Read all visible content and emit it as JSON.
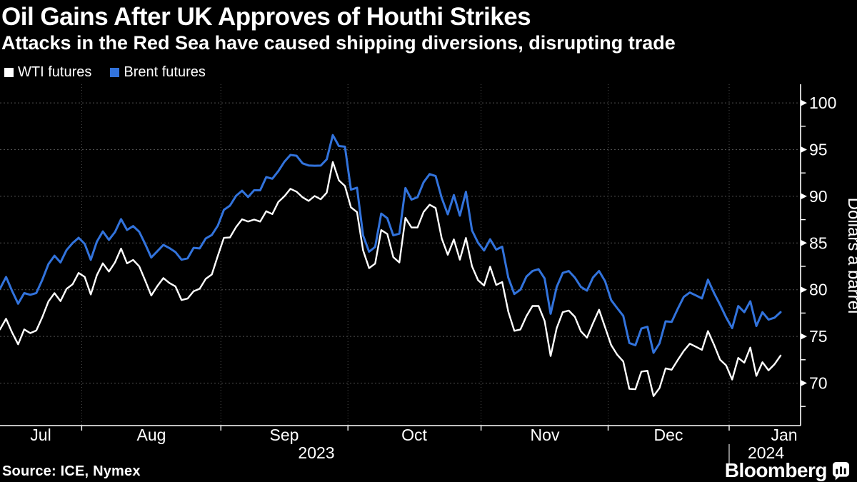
{
  "header": {
    "title": "Oil Gains After UK Approves of Houthi Strikes",
    "subtitle": "Attacks in the Red Sea have caused shipping diversions, disrupting trade"
  },
  "legend": [
    {
      "label": "WTI futures",
      "color": "#ffffff"
    },
    {
      "label": "Brent futures",
      "color": "#3273dc"
    }
  ],
  "source": "Source: ICE, Nymex",
  "branding": {
    "logo_text": "Bloomberg"
  },
  "chart_data": {
    "type": "line",
    "title": "Oil Gains After UK Approves of Houthi Strikes",
    "subtitle": "Attacks in the Red Sea have caused shipping diversions, disrupting trade",
    "xlabel": "",
    "ylabel": "Dollars a barrel",
    "x_unit": "daily trading sessions, Jul 12 2023 - Jan 12 2024",
    "ylim": [
      65.4,
      101.9
    ],
    "y_ticks": [
      70,
      75,
      80,
      85,
      90,
      95,
      100
    ],
    "y_minor_ticks": [
      67.5,
      72.5,
      77.5,
      82.5,
      87.5,
      92.5,
      97.5
    ],
    "grid": "dotted horizontal at majors, dotted vertical at month starts",
    "legend_position": "top-left",
    "month_tick_labels": [
      "Jul",
      "Aug",
      "Sep",
      "Oct",
      "Nov",
      "Dec",
      "Jan"
    ],
    "month_boundary_indices": [
      13.5,
      36.5,
      57.5,
      79.5,
      100.5,
      120.5
    ],
    "total_points": 130,
    "year_labels": [
      {
        "label": "2023"
      },
      {
        "label": "2024"
      }
    ],
    "series": [
      {
        "name": "WTI futures",
        "color": "#ffffff",
        "values": [
          75.75,
          76.89,
          75.42,
          74.15,
          75.75,
          75.35,
          75.63,
          77.07,
          78.74,
          79.63,
          78.78,
          80.09,
          80.58,
          81.8,
          81.37,
          79.49,
          81.55,
          82.82,
          81.94,
          82.92,
          84.4,
          82.82,
          83.19,
          82.51,
          80.99,
          79.38,
          80.39,
          81.25,
          80.72,
          80.35,
          78.89,
          79.05,
          79.83,
          80.1,
          81.16,
          81.63,
          83.63,
          85.55,
          85.6,
          86.69,
          87.54,
          87.3,
          87.51,
          87.29,
          88.4,
          88.1,
          89.4,
          90.0,
          90.8,
          90.5,
          89.9,
          89.5,
          90.03,
          89.68,
          90.39,
          93.68,
          91.71,
          91.1,
          88.82,
          88.3,
          84.22,
          82.31,
          82.79,
          86.38,
          85.97,
          83.49,
          82.91,
          87.69,
          86.66,
          86.66,
          88.32,
          89.1,
          88.75,
          85.49,
          83.74,
          85.39,
          83.21,
          85.54,
          82.51,
          81.02,
          80.44,
          82.46,
          80.51,
          80.82,
          77.66,
          75.6,
          75.74,
          77.17,
          78.26,
          78.26,
          76.66,
          72.9,
          75.89,
          77.6,
          77.77,
          77.1,
          75.54,
          74.86,
          76.41,
          77.86,
          75.96,
          74.07,
          73.04,
          72.32,
          69.38,
          69.34,
          71.23,
          71.32,
          68.61,
          69.47,
          71.58,
          71.43,
          72.47,
          73.44,
          74.22,
          73.89,
          73.56,
          75.57,
          74.11,
          72.5,
          71.9,
          70.38,
          72.7,
          72.19,
          73.81,
          70.77,
          72.24,
          71.37,
          72.02,
          72.95
        ]
      },
      {
        "name": "Brent futures",
        "color": "#3273dc",
        "values": [
          80.11,
          81.36,
          79.87,
          78.5,
          79.63,
          79.46,
          79.64,
          81.07,
          82.74,
          83.64,
          82.92,
          84.24,
          84.99,
          85.56,
          84.91,
          83.2,
          85.14,
          86.24,
          85.34,
          86.17,
          87.55,
          86.4,
          86.81,
          86.21,
          84.89,
          83.45,
          84.12,
          84.8,
          84.46,
          84.03,
          83.21,
          83.36,
          84.48,
          84.42,
          85.49,
          85.86,
          86.86,
          88.55,
          89.0,
          90.04,
          90.6,
          89.92,
          90.65,
          90.64,
          92.06,
          91.88,
          92.7,
          93.7,
          94.43,
          94.34,
          93.53,
          93.3,
          93.27,
          93.29,
          93.96,
          96.55,
          95.38,
          95.31,
          90.71,
          90.92,
          85.81,
          84.07,
          84.58,
          88.15,
          87.65,
          85.82,
          86.0,
          90.89,
          89.65,
          89.9,
          91.5,
          92.38,
          92.16,
          89.83,
          88.07,
          90.13,
          87.93,
          90.48,
          86.35,
          85.02,
          84.2,
          85.4,
          84.3,
          84.6,
          81.3,
          79.54,
          80.01,
          81.4,
          82.0,
          82.2,
          81.2,
          77.42,
          80.3,
          81.8,
          82.0,
          81.3,
          80.3,
          79.9,
          81.3,
          82.0,
          80.9,
          78.88,
          78.03,
          77.2,
          74.3,
          74.05,
          75.84,
          76.03,
          73.24,
          74.26,
          76.61,
          76.55,
          77.95,
          79.23,
          79.7,
          79.39,
          79.07,
          81.07,
          79.65,
          78.39,
          77.04,
          75.89,
          78.25,
          77.59,
          78.76,
          76.12,
          77.59,
          76.8,
          77.0,
          77.6
        ]
      }
    ]
  },
  "colors": {
    "background": "#000000",
    "text": "#ffffff",
    "grid": "#4f4f4f",
    "axis": "#ffffff",
    "brent_blue": "#3273dc"
  }
}
